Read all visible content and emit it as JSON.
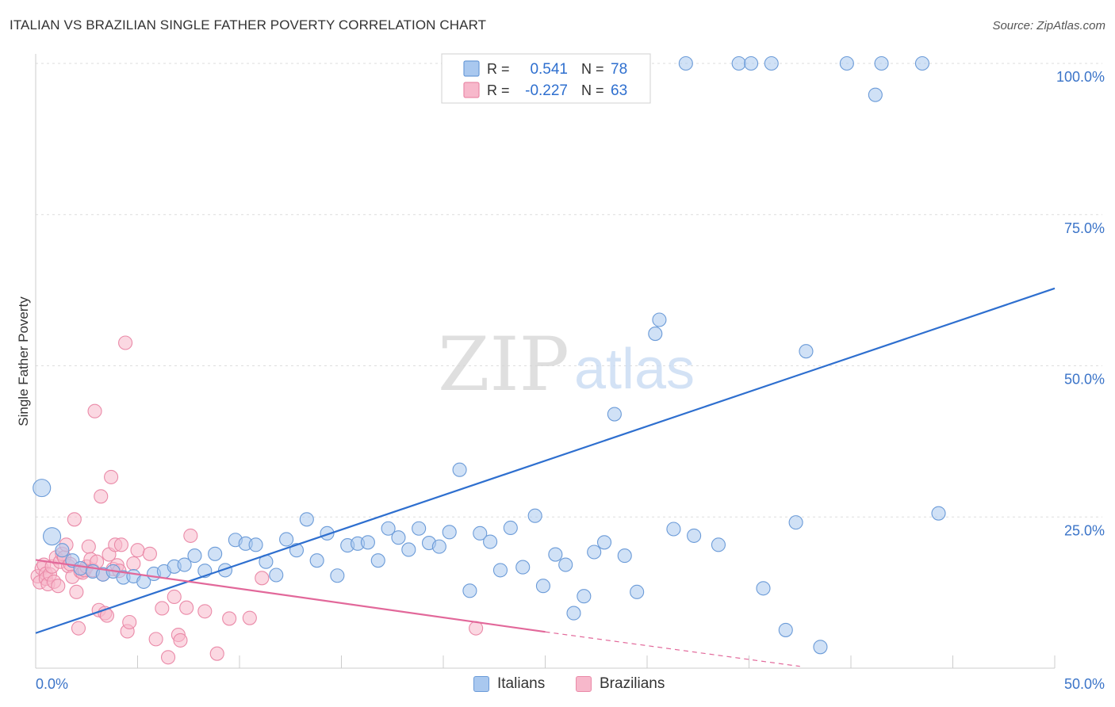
{
  "title": "ITALIAN VS BRAZILIAN SINGLE FATHER POVERTY CORRELATION CHART",
  "source": "Source: ZipAtlas.com",
  "watermark": {
    "zip": "ZIP",
    "atlas": "atlas"
  },
  "colors": {
    "italians_fill": "#a9c8ef",
    "italians_stroke": "#6b9bd8",
    "italians_line": "#2e6fcf",
    "brazilians_fill": "#f7b8cb",
    "brazilians_stroke": "#ea8aa8",
    "brazilians_line": "#e2689a",
    "axis_text": "#3b74c8",
    "grid": "#dddddd"
  },
  "legend": {
    "rows": [
      {
        "r_label": "R =",
        "r_value": "0.541",
        "n_label": "N =",
        "n_value": "78"
      },
      {
        "r_label": "R =",
        "r_value": "-0.227",
        "n_label": "N =",
        "n_value": "63"
      }
    ],
    "bottom": [
      "Italians",
      "Brazilians"
    ]
  },
  "chart_data": {
    "type": "scatter",
    "title": "ITALIAN VS BRAZILIAN SINGLE FATHER POVERTY CORRELATION CHART",
    "xlabel": "",
    "ylabel": "Single Father Poverty",
    "xlim": [
      0,
      50
    ],
    "ylim": [
      0,
      100
    ],
    "x_tick_labels": [
      "0.0%",
      "50.0%"
    ],
    "y_ticks": [
      25,
      50,
      75,
      100
    ],
    "y_tick_labels": [
      "25.0%",
      "50.0%",
      "75.0%",
      "100.0%"
    ],
    "grid": true,
    "legend_position": "top-center",
    "series": [
      {
        "name": "Italians",
        "r": 0.541,
        "n": 78,
        "trend": {
          "x": [
            0,
            50
          ],
          "y": [
            5.8,
            62.8
          ]
        },
        "points": [
          [
            0.3,
            29.8
          ],
          [
            0.8,
            21.8
          ],
          [
            1.3,
            19.5
          ],
          [
            1.8,
            17.8
          ],
          [
            2.2,
            16.5
          ],
          [
            2.8,
            16.0
          ],
          [
            3.3,
            15.5
          ],
          [
            3.8,
            16.0
          ],
          [
            4.3,
            15.0
          ],
          [
            4.8,
            15.2
          ],
          [
            5.3,
            14.3
          ],
          [
            5.8,
            15.6
          ],
          [
            6.3,
            16.0
          ],
          [
            6.8,
            16.8
          ],
          [
            7.3,
            17.1
          ],
          [
            7.8,
            18.6
          ],
          [
            8.3,
            16.1
          ],
          [
            8.8,
            18.9
          ],
          [
            9.3,
            16.2
          ],
          [
            9.8,
            21.2
          ],
          [
            10.3,
            20.6
          ],
          [
            10.8,
            20.4
          ],
          [
            11.3,
            17.6
          ],
          [
            11.8,
            15.4
          ],
          [
            12.3,
            21.3
          ],
          [
            12.8,
            19.5
          ],
          [
            13.3,
            24.6
          ],
          [
            13.8,
            17.8
          ],
          [
            14.3,
            22.3
          ],
          [
            14.8,
            15.3
          ],
          [
            15.3,
            20.3
          ],
          [
            15.8,
            20.6
          ],
          [
            16.3,
            20.8
          ],
          [
            16.8,
            17.8
          ],
          [
            17.3,
            23.1
          ],
          [
            17.8,
            21.6
          ],
          [
            18.3,
            19.6
          ],
          [
            18.8,
            23.1
          ],
          [
            19.3,
            20.7
          ],
          [
            19.8,
            20.1
          ],
          [
            20.3,
            22.5
          ],
          [
            20.8,
            32.8
          ],
          [
            21.3,
            12.8
          ],
          [
            21.8,
            22.3
          ],
          [
            22.3,
            20.9
          ],
          [
            22.8,
            16.2
          ],
          [
            23.3,
            23.2
          ],
          [
            23.9,
            16.7
          ],
          [
            24.5,
            25.2
          ],
          [
            24.9,
            13.6
          ],
          [
            25.5,
            18.8
          ],
          [
            26.0,
            17.1
          ],
          [
            26.4,
            9.1
          ],
          [
            26.9,
            11.9
          ],
          [
            27.4,
            19.2
          ],
          [
            27.9,
            20.8
          ],
          [
            28.4,
            42.0
          ],
          [
            28.9,
            18.6
          ],
          [
            29.5,
            12.6
          ],
          [
            30.4,
            55.3
          ],
          [
            30.6,
            57.6
          ],
          [
            31.3,
            23.0
          ],
          [
            31.9,
            100.0
          ],
          [
            32.3,
            21.9
          ],
          [
            33.5,
            20.4
          ],
          [
            34.5,
            100.0
          ],
          [
            35.1,
            100.0
          ],
          [
            35.7,
            13.2
          ],
          [
            36.1,
            100.0
          ],
          [
            36.8,
            6.3
          ],
          [
            37.3,
            24.1
          ],
          [
            37.8,
            52.4
          ],
          [
            38.5,
            3.5
          ],
          [
            39.8,
            100.0
          ],
          [
            41.2,
            94.8
          ],
          [
            41.5,
            100.0
          ],
          [
            43.5,
            100.0
          ],
          [
            44.3,
            25.6
          ]
        ]
      },
      {
        "name": "Brazilians",
        "r": -0.227,
        "n": 63,
        "trend": {
          "x": [
            0,
            25
          ],
          "y": [
            17.9,
            6.0
          ],
          "dashed_x": [
            25,
            37.5
          ],
          "dashed_y": [
            6.0,
            0.3
          ]
        },
        "points": [
          [
            0.1,
            15.2
          ],
          [
            0.2,
            14.2
          ],
          [
            0.3,
            16.5
          ],
          [
            0.4,
            17.1
          ],
          [
            0.5,
            15.6
          ],
          [
            0.5,
            14.8
          ],
          [
            0.6,
            13.9
          ],
          [
            0.7,
            15.5
          ],
          [
            0.8,
            16.8
          ],
          [
            0.9,
            14.3
          ],
          [
            1.0,
            18.3
          ],
          [
            1.1,
            13.6
          ],
          [
            1.2,
            17.6
          ],
          [
            1.3,
            18.9
          ],
          [
            1.4,
            18.3
          ],
          [
            1.5,
            20.4
          ],
          [
            1.6,
            16.9
          ],
          [
            1.7,
            17.2
          ],
          [
            1.8,
            15.1
          ],
          [
            1.9,
            24.6
          ],
          [
            2.0,
            12.6
          ],
          [
            2.1,
            6.6
          ],
          [
            2.2,
            16.0
          ],
          [
            2.3,
            15.8
          ],
          [
            2.4,
            16.2
          ],
          [
            2.5,
            16.8
          ],
          [
            2.6,
            20.1
          ],
          [
            2.7,
            18.0
          ],
          [
            2.8,
            16.2
          ],
          [
            2.9,
            42.5
          ],
          [
            3.0,
            17.6
          ],
          [
            3.1,
            9.6
          ],
          [
            3.2,
            28.4
          ],
          [
            3.3,
            15.5
          ],
          [
            3.4,
            9.1
          ],
          [
            3.5,
            8.7
          ],
          [
            3.6,
            18.8
          ],
          [
            3.7,
            31.6
          ],
          [
            3.8,
            16.4
          ],
          [
            3.9,
            20.4
          ],
          [
            4.0,
            17.0
          ],
          [
            4.1,
            16.1
          ],
          [
            4.2,
            20.4
          ],
          [
            4.4,
            53.8
          ],
          [
            4.5,
            6.1
          ],
          [
            4.6,
            7.6
          ],
          [
            4.8,
            17.3
          ],
          [
            5.0,
            19.5
          ],
          [
            5.6,
            18.9
          ],
          [
            5.9,
            4.8
          ],
          [
            6.2,
            9.9
          ],
          [
            6.5,
            1.8
          ],
          [
            6.8,
            11.8
          ],
          [
            7.0,
            5.5
          ],
          [
            7.1,
            4.6
          ],
          [
            7.4,
            10.0
          ],
          [
            7.6,
            21.9
          ],
          [
            8.3,
            9.4
          ],
          [
            8.9,
            2.4
          ],
          [
            9.5,
            8.2
          ],
          [
            10.5,
            8.3
          ],
          [
            11.1,
            14.9
          ],
          [
            21.6,
            6.6
          ]
        ]
      }
    ]
  }
}
